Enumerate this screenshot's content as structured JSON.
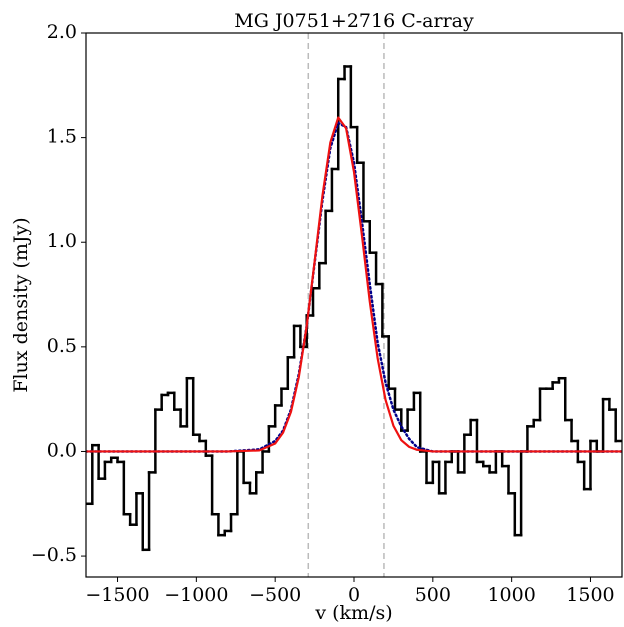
{
  "chart_data": {
    "type": "spectrum",
    "title": "MG J0751+2716 C-array",
    "xlabel": "v (km/s)",
    "ylabel": "Flux density (mJy)",
    "xlim": [
      -1700,
      1700
    ],
    "ylim": [
      -0.6,
      2.0
    ],
    "xticks": [
      {
        "value": -1500,
        "label": "−1500"
      },
      {
        "value": -1000,
        "label": "−1000"
      },
      {
        "value": -500,
        "label": "−500"
      },
      0,
      500,
      1000,
      1500
    ],
    "yticks": [
      {
        "value": -0.5,
        "label": "−0.5"
      },
      {
        "value": 0,
        "label": "0.0"
      },
      0.5,
      {
        "value": 1,
        "label": "1.0"
      },
      1.5,
      {
        "value": 2,
        "label": "2.0"
      }
    ],
    "vlines": [
      -290,
      190
    ],
    "vline_color": "#bbbbbb",
    "series": [
      {
        "style": "step",
        "color": "#000000",
        "x": [
          -1680,
          -1640,
          -1600,
          -1560,
          -1520,
          -1480,
          -1440,
          -1400,
          -1360,
          -1320,
          -1280,
          -1240,
          -1200,
          -1160,
          -1120,
          -1080,
          -1040,
          -1000,
          -960,
          -920,
          -880,
          -840,
          -800,
          -760,
          -720,
          -680,
          -640,
          -600,
          -560,
          -520,
          -480,
          -440,
          -400,
          -360,
          -320,
          -280,
          -240,
          -200,
          -160,
          -120,
          -80,
          -40,
          0,
          40,
          80,
          120,
          160,
          200,
          240,
          280,
          320,
          360,
          400,
          440,
          480,
          520,
          560,
          600,
          640,
          680,
          720,
          760,
          800,
          840,
          880,
          920,
          960,
          1000,
          1040,
          1080,
          1120,
          1160,
          1200,
          1240,
          1280,
          1320,
          1360,
          1400,
          1440,
          1480,
          1520,
          1560,
          1600,
          1640,
          1680
        ],
        "values": [
          -0.25,
          0.03,
          -0.13,
          -0.05,
          -0.03,
          -0.05,
          -0.3,
          -0.35,
          -0.2,
          -0.47,
          -0.1,
          0.2,
          0.27,
          0.28,
          0.2,
          0.12,
          0.35,
          0.08,
          0.05,
          -0.02,
          -0.3,
          -0.4,
          -0.38,
          -0.3,
          0.0,
          -0.15,
          -0.2,
          -0.1,
          0.0,
          0.12,
          0.22,
          0.3,
          0.45,
          0.6,
          0.5,
          0.65,
          0.78,
          0.9,
          1.15,
          1.35,
          1.78,
          1.84,
          1.55,
          1.38,
          1.1,
          0.95,
          0.8,
          0.55,
          0.3,
          0.2,
          0.1,
          0.2,
          0.28,
          0.0,
          -0.15,
          -0.05,
          -0.2,
          -0.05,
          0.0,
          -0.1,
          0.08,
          0.15,
          -0.05,
          -0.07,
          -0.1,
          0.0,
          -0.07,
          -0.2,
          -0.4,
          0.0,
          0.12,
          0.15,
          0.3,
          0.3,
          0.33,
          0.35,
          0.15,
          0.05,
          -0.05,
          -0.18,
          0.05,
          0.0,
          0.25,
          0.2,
          0.05
        ]
      },
      {
        "style": "dotted",
        "color": "#00008b",
        "x": [
          -1700,
          -800,
          -600,
          -500,
          -450,
          -400,
          -350,
          -300,
          -250,
          -200,
          -150,
          -100,
          -50,
          0,
          50,
          100,
          150,
          200,
          250,
          300,
          350,
          400,
          500,
          700,
          1700
        ],
        "values": [
          0,
          0,
          0.01,
          0.05,
          0.1,
          0.2,
          0.37,
          0.6,
          0.9,
          1.2,
          1.45,
          1.57,
          1.55,
          1.38,
          1.1,
          0.8,
          0.52,
          0.33,
          0.2,
          0.12,
          0.06,
          0.02,
          0,
          0,
          0
        ]
      },
      {
        "style": "solid",
        "color": "#ee1111",
        "x": [
          -1700,
          -800,
          -600,
          -500,
          -450,
          -400,
          -350,
          -300,
          -250,
          -200,
          -150,
          -100,
          -50,
          0,
          50,
          100,
          150,
          200,
          250,
          300,
          350,
          400,
          500,
          700,
          1700
        ],
        "values": [
          0,
          0,
          0.005,
          0.038,
          0.09,
          0.189,
          0.356,
          0.6,
          0.906,
          1.223,
          1.477,
          1.596,
          1.544,
          1.336,
          1.035,
          0.717,
          0.445,
          0.247,
          0.123,
          0.054,
          0.022,
          0.008,
          0,
          0,
          0
        ]
      }
    ]
  }
}
